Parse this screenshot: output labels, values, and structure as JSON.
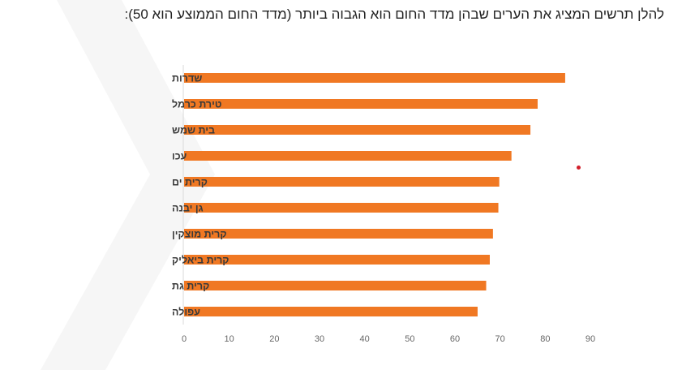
{
  "intro_text": "להלן תרשים המציג את הערים שבהן מדד החום הוא הגבוה ביותר (מדד החום הממוצע הוא 50):",
  "colors": {
    "bar": "#f07823",
    "axis": "#d9d9d9",
    "marker": "#d21f2b"
  },
  "chart_data": {
    "type": "bar",
    "orientation": "horizontal",
    "title": "",
    "xlabel": "",
    "ylabel": "",
    "categories": [
      "שדרות",
      "טירת כרמל",
      "בית שמש",
      "עכו",
      "קרית ים",
      "גן יבנה",
      "קרית מוצקין",
      "קרית ביאליק",
      "קרית גת",
      "עפולה"
    ],
    "values": [
      84.6,
      78.5,
      76.9,
      72.7,
      70.0,
      69.8,
      68.6,
      67.9,
      67.1,
      65.2
    ],
    "xlim": [
      0,
      90
    ],
    "xticks": [
      0,
      10,
      20,
      30,
      40,
      50,
      60,
      70,
      80,
      90
    ],
    "grid": false,
    "legend": "none"
  }
}
